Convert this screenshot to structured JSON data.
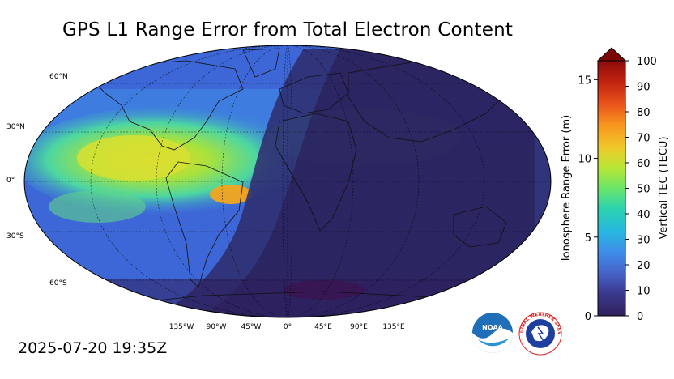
{
  "title": "GPS L1 Range Error from Total Electron Content",
  "timestamp": "2025-07-20 19:35Z",
  "map": {
    "lat_labels": [
      "60°N",
      "30°N",
      "0°",
      "30°S",
      "60°S"
    ],
    "lon_labels": [
      "135°W",
      "90°W",
      "45°W",
      "0°",
      "45°E",
      "90°E",
      "135°E"
    ]
  },
  "colorbar": {
    "left_axis_label": "Ionosphere Range Error (m)",
    "right_axis_label": "Vertical TEC (TECU)",
    "left_ticks": [
      "0",
      "5",
      "10",
      "15"
    ],
    "right_ticks": [
      "0",
      "10",
      "20",
      "30",
      "40",
      "50",
      "60",
      "70",
      "80",
      "90",
      "100"
    ],
    "tec_range": [
      0,
      100
    ],
    "range_error_range": [
      0,
      16.2
    ],
    "colors": [
      "#2f1f5c",
      "#3b3a8f",
      "#4663c9",
      "#3f8ee8",
      "#27b7e0",
      "#2bd3b0",
      "#6be66a",
      "#b7e635",
      "#f0c92a",
      "#f8941e",
      "#e9541b",
      "#c0220f",
      "#8c0b0b"
    ]
  },
  "logos": {
    "noaa_text": "NOAA",
    "nws_text": "NATIONAL WEATHER SERVICE"
  }
}
